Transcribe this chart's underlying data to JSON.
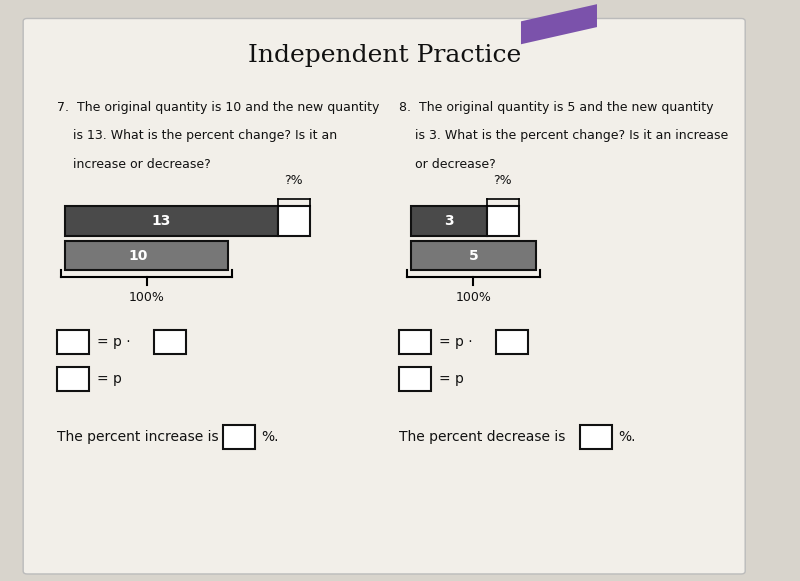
{
  "title": "Independent Practice",
  "title_fontsize": 18,
  "bg_color": "#d8d4cc",
  "paper_color": "#f2efe9",
  "q7_text_line1": "7.  The original quantity is 10 and the new quantity",
  "q7_text_line2": "    is 13. What is the percent change? Is it an",
  "q7_text_line3": "    increase or decrease?",
  "q7_bar1_label": "13",
  "q7_bar2_label": "10",
  "q7_pct_label": "?%",
  "q7_100pct": "100%",
  "q7_eq1": "= p ·",
  "q7_eq2": "= p",
  "q7_conclusion": "The percent increase is",
  "q7_pct_end": "%.",
  "q8_text_line1": "8.  The original quantity is 5 and the new quantity",
  "q8_text_line2": "    is 3. What is the percent change? Is it an increase",
  "q8_text_line3": "    or decrease?",
  "q8_bar1_label": "3",
  "q8_bar2_label": "5",
  "q8_pct_label": "?%",
  "q8_100pct": "100%",
  "q8_eq1": "= p ·",
  "q8_eq2": "= p",
  "q8_conclusion": "The percent decrease is",
  "q8_pct_end": "%.",
  "bar_dark_color": "#4a4a4a",
  "bar_light_color": "#777777",
  "bar_border_color": "#111111",
  "box_color": "#ffffff",
  "text_color": "#111111",
  "font_size_text": 9,
  "purple_color": "#7B52AB"
}
